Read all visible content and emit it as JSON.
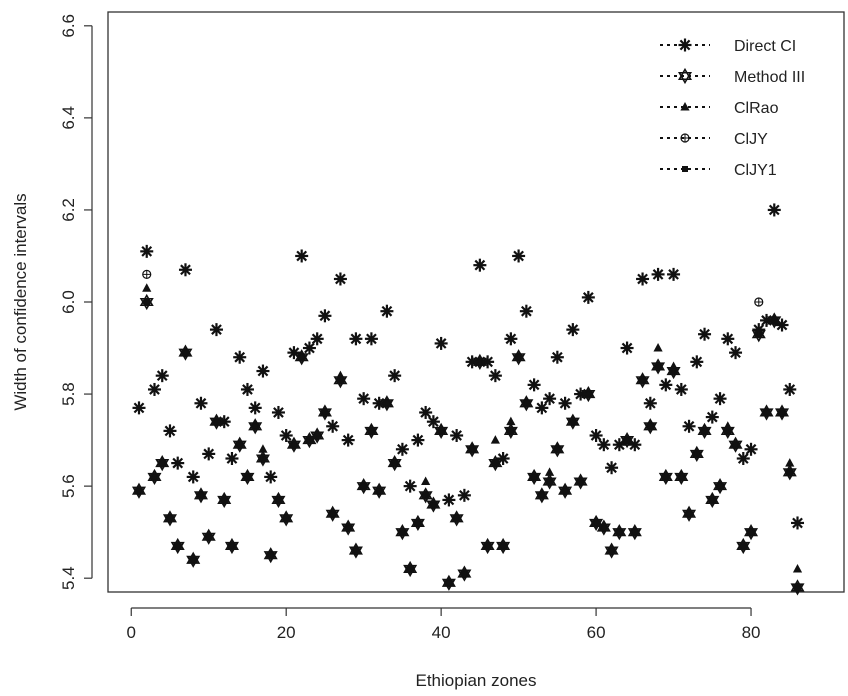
{
  "chart_data": {
    "type": "scatter",
    "title": "",
    "xlabel": "Ethiopian zones",
    "ylabel": "Width of confidence intervals",
    "xlim": [
      -3,
      92
    ],
    "ylim": [
      5.37,
      6.63
    ],
    "x_ticks": [
      0,
      20,
      40,
      60,
      80
    ],
    "y_ticks": [
      5.4,
      5.6,
      5.8,
      6.0,
      6.2,
      6.4,
      6.6
    ],
    "x_tick_labels": [
      "0",
      "20",
      "40",
      "60",
      "80"
    ],
    "y_tick_labels": [
      "5.4",
      "5.6",
      "5.8",
      "6.0",
      "6.2",
      "6.4",
      "6.6"
    ],
    "grid": false,
    "legend_position": "top-right",
    "x": [
      1,
      2,
      3,
      4,
      5,
      6,
      7,
      8,
      9,
      10,
      11,
      12,
      13,
      14,
      15,
      16,
      17,
      18,
      19,
      20,
      21,
      22,
      23,
      24,
      25,
      26,
      27,
      28,
      29,
      30,
      31,
      32,
      33,
      34,
      35,
      36,
      37,
      38,
      39,
      40,
      41,
      42,
      43,
      44,
      45,
      46,
      47,
      48,
      49,
      50,
      51,
      52,
      53,
      54,
      55,
      56,
      57,
      58,
      59,
      60,
      61,
      62,
      63,
      64,
      65,
      66,
      67,
      68,
      69,
      70,
      71,
      72,
      73,
      74,
      75,
      76,
      77,
      78,
      79,
      80,
      81,
      82,
      83,
      84,
      85,
      86
    ],
    "series": [
      {
        "name": "Direct CI",
        "marker": "asterisk",
        "values": [
          5.77,
          6.11,
          5.81,
          5.84,
          5.72,
          5.65,
          6.07,
          5.62,
          5.78,
          5.67,
          5.94,
          5.74,
          5.66,
          5.88,
          5.81,
          5.77,
          5.85,
          5.62,
          5.76,
          5.71,
          5.89,
          6.1,
          5.9,
          5.92,
          5.97,
          5.73,
          6.05,
          5.7,
          5.92,
          5.79,
          5.92,
          5.78,
          5.98,
          5.84,
          5.68,
          5.6,
          5.7,
          5.76,
          5.74,
          5.91,
          5.57,
          5.71,
          5.58,
          5.87,
          6.08,
          5.87,
          5.84,
          5.66,
          5.92,
          6.1,
          5.98,
          5.82,
          5.77,
          5.79,
          5.88,
          5.78,
          5.94,
          5.8,
          6.01,
          5.71,
          5.69,
          5.64,
          5.69,
          5.9,
          5.69,
          6.05,
          5.78,
          6.06,
          5.82,
          6.06,
          5.81,
          5.73,
          5.87,
          5.93,
          5.75,
          5.79,
          5.92,
          5.89,
          5.66,
          5.68,
          5.94,
          5.96,
          6.2,
          5.95,
          5.81,
          5.52
        ]
      },
      {
        "name": "Method III",
        "marker": "star-of-david",
        "values": [
          5.59,
          6.0,
          5.62,
          5.65,
          5.53,
          5.47,
          5.89,
          5.44,
          5.58,
          5.49,
          5.74,
          5.57,
          5.47,
          5.69,
          5.62,
          5.73,
          5.66,
          5.45,
          5.57,
          5.53,
          5.69,
          5.88,
          5.7,
          5.71,
          5.76,
          5.54,
          5.83,
          5.51,
          5.46,
          5.6,
          5.72,
          5.59,
          5.78,
          5.65,
          5.5,
          5.42,
          5.52,
          5.58,
          5.56,
          5.72,
          5.39,
          5.53,
          5.41,
          5.68,
          5.87,
          5.47,
          5.65,
          5.47,
          5.72,
          5.88,
          5.78,
          5.62,
          5.58,
          5.61,
          5.68,
          5.59,
          5.74,
          5.61,
          5.8,
          5.52,
          5.51,
          5.46,
          5.5,
          5.7,
          5.5,
          5.83,
          5.73,
          5.86,
          5.62,
          5.85,
          5.62,
          5.54,
          5.67,
          5.72,
          5.57,
          5.6,
          5.72,
          5.69,
          5.47,
          5.5,
          5.93,
          5.76,
          5.96,
          5.76,
          5.63,
          5.38
        ]
      },
      {
        "name": "ClRao",
        "marker": "triangle",
        "values": [
          5.59,
          6.03,
          5.62,
          5.65,
          5.53,
          5.47,
          5.89,
          5.44,
          5.58,
          5.49,
          5.74,
          5.57,
          5.47,
          5.69,
          5.62,
          5.73,
          5.68,
          5.45,
          5.57,
          5.53,
          5.69,
          5.88,
          5.7,
          5.71,
          5.76,
          5.54,
          5.84,
          5.51,
          5.46,
          5.6,
          5.72,
          5.59,
          5.78,
          5.65,
          5.5,
          5.42,
          5.52,
          5.61,
          5.56,
          5.72,
          5.39,
          5.53,
          5.41,
          5.68,
          5.87,
          5.47,
          5.7,
          5.47,
          5.74,
          5.88,
          5.78,
          5.62,
          5.58,
          5.63,
          5.68,
          5.59,
          5.74,
          5.61,
          5.8,
          5.52,
          5.51,
          5.46,
          5.5,
          5.7,
          5.5,
          5.83,
          5.73,
          5.9,
          5.62,
          5.86,
          5.62,
          5.54,
          5.67,
          5.72,
          5.57,
          5.6,
          5.73,
          5.69,
          5.47,
          5.5,
          5.93,
          5.76,
          5.96,
          5.76,
          5.65,
          5.42
        ]
      },
      {
        "name": "ClJY",
        "marker": "circle",
        "values": [
          5.59,
          6.06,
          5.62,
          5.65,
          5.53,
          5.47,
          5.89,
          5.44,
          5.58,
          5.49,
          5.74,
          5.57,
          5.47,
          5.69,
          5.62,
          5.73,
          5.66,
          5.45,
          5.57,
          5.53,
          5.69,
          5.88,
          5.7,
          5.71,
          5.76,
          5.54,
          5.83,
          5.51,
          5.46,
          5.6,
          5.72,
          5.59,
          5.78,
          5.65,
          5.5,
          5.42,
          5.52,
          5.58,
          5.56,
          5.72,
          5.39,
          5.53,
          5.41,
          5.68,
          5.87,
          5.47,
          5.65,
          5.47,
          5.72,
          5.88,
          5.78,
          5.62,
          5.58,
          5.61,
          5.68,
          5.59,
          5.74,
          5.61,
          5.8,
          5.52,
          5.51,
          5.46,
          5.5,
          5.7,
          5.5,
          5.83,
          5.73,
          5.86,
          5.62,
          5.85,
          5.62,
          5.54,
          5.67,
          5.72,
          5.57,
          5.6,
          5.72,
          5.69,
          5.47,
          5.5,
          6.0,
          5.76,
          5.96,
          5.76,
          5.63,
          5.38
        ]
      },
      {
        "name": "ClJY1",
        "marker": "square",
        "values": [
          5.59,
          6.0,
          5.62,
          5.65,
          5.53,
          5.47,
          5.89,
          5.44,
          5.58,
          5.49,
          5.74,
          5.57,
          5.47,
          5.69,
          5.62,
          5.73,
          5.66,
          5.45,
          5.57,
          5.53,
          5.69,
          5.88,
          5.7,
          5.71,
          5.76,
          5.54,
          5.83,
          5.51,
          5.46,
          5.6,
          5.72,
          5.59,
          5.78,
          5.65,
          5.5,
          5.42,
          5.52,
          5.58,
          5.56,
          5.72,
          5.39,
          5.53,
          5.41,
          5.68,
          5.87,
          5.47,
          5.65,
          5.47,
          5.72,
          5.88,
          5.78,
          5.62,
          5.58,
          5.61,
          5.68,
          5.59,
          5.74,
          5.61,
          5.8,
          5.52,
          5.51,
          5.46,
          5.5,
          5.7,
          5.5,
          5.83,
          5.73,
          5.86,
          5.62,
          5.85,
          5.62,
          5.54,
          5.67,
          5.72,
          5.57,
          5.6,
          5.72,
          5.69,
          5.47,
          5.5,
          5.93,
          5.76,
          5.96,
          5.76,
          5.63,
          5.38
        ]
      }
    ]
  }
}
